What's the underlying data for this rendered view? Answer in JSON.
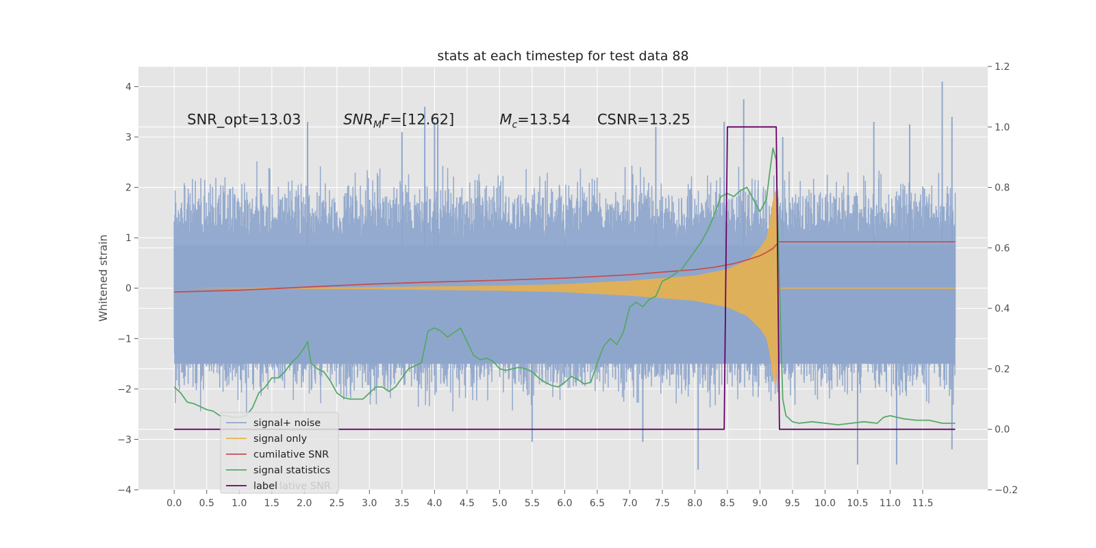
{
  "chart_data": {
    "type": "line",
    "title": "stats at each timestep for test data 88",
    "ylabel": "Whitened strain",
    "ylabel_right": "",
    "xlim": [
      -0.55,
      12.5
    ],
    "ylim": [
      -4,
      4.4
    ],
    "ylim_right": [
      -0.2,
      1.2
    ],
    "xticks": [
      0.0,
      0.5,
      1.0,
      1.5,
      2.0,
      2.5,
      3.0,
      3.5,
      4.0,
      4.5,
      5.0,
      5.5,
      6.0,
      6.5,
      7.0,
      7.5,
      8.0,
      8.5,
      9.0,
      9.5,
      10.0,
      10.5,
      11.0,
      11.5
    ],
    "xtick_labels": [
      "0.0",
      "0.5",
      "1.0",
      "1.5",
      "2.0",
      "2.5",
      "3.0",
      "3.5",
      "4.0",
      "4.5",
      "5.0",
      "5.5",
      "6.0",
      "6.5",
      "7.0",
      "7.5",
      "8.0",
      "8.5",
      "9.0",
      "9.5",
      "10.0",
      "10.5",
      "11.0",
      "11.5"
    ],
    "yticks_left": [
      -4,
      -3,
      -2,
      -1,
      0,
      1,
      2,
      3,
      4
    ],
    "ytick_labels_left": [
      "−4",
      "−3",
      "−2",
      "−1",
      "0",
      "1",
      "2",
      "3",
      "4"
    ],
    "yticks_right": [
      -0.2,
      0.0,
      0.2,
      0.4,
      0.6,
      0.8,
      1.0,
      1.2
    ],
    "ytick_labels_right": [
      "−0.2",
      "0.0",
      "0.2",
      "0.4",
      "0.6",
      "0.8",
      "1.0",
      "1.2"
    ],
    "grid": true,
    "legend_position": "lower-left",
    "annotations": [
      {
        "text": "SNR_opt=13.03",
        "x": 0.2,
        "y": 3.35
      },
      {
        "text_main": "SNR",
        "text_sub": "M",
        "text_rest": "F=[12.62]",
        "x": 2.6,
        "y": 3.35
      },
      {
        "text_main": "M",
        "text_sub": "c",
        "text_rest": "=13.54",
        "x": 5.0,
        "y": 3.35
      },
      {
        "text": "CSNR=13.25",
        "x": 6.5,
        "y": 3.35
      }
    ],
    "series": [
      {
        "name": "signal+ noise",
        "color": "#8fa6cc",
        "axis": "left",
        "style": "noise-band",
        "t_range": [
          0.0,
          12.0
        ],
        "typical_amplitude": 1.6,
        "peaks": [
          {
            "x": 2.05,
            "y": 3.3
          },
          {
            "x": 3.5,
            "y": 3.1
          },
          {
            "x": 3.85,
            "y": 3.6
          },
          {
            "x": 4.0,
            "y": 3.3
          },
          {
            "x": 4.05,
            "y": 3.4
          },
          {
            "x": 7.4,
            "y": 3.2
          },
          {
            "x": 8.45,
            "y": 3.3
          },
          {
            "x": 8.75,
            "y": 3.75
          },
          {
            "x": 11.8,
            "y": 4.1
          },
          {
            "x": 11.3,
            "y": 3.25
          },
          {
            "x": 10.75,
            "y": 3.3
          },
          {
            "x": 11.95,
            "y": 3.4
          },
          {
            "x": 9.35,
            "y": 3.0
          },
          {
            "x": 6.0,
            "y": 0.95
          },
          {
            "x": 5.5,
            "y": -3.05
          },
          {
            "x": 7.2,
            "y": -3.05
          },
          {
            "x": 8.05,
            "y": -3.6
          },
          {
            "x": 10.5,
            "y": -3.5
          },
          {
            "x": 11.1,
            "y": -3.5
          },
          {
            "x": 11.95,
            "y": -3.2
          },
          {
            "x": 6.0,
            "y": -1.1
          }
        ]
      },
      {
        "name": "signal only",
        "color": "#e8b14e",
        "axis": "left",
        "style": "chirp-envelope",
        "envelope": [
          [
            0.0,
            0.0
          ],
          [
            3.0,
            0.02
          ],
          [
            5.0,
            0.05
          ],
          [
            6.0,
            0.08
          ],
          [
            7.0,
            0.15
          ],
          [
            7.5,
            0.2
          ],
          [
            8.0,
            0.25
          ],
          [
            8.5,
            0.38
          ],
          [
            8.8,
            0.55
          ],
          [
            9.0,
            0.8
          ],
          [
            9.1,
            1.0
          ],
          [
            9.15,
            1.3
          ],
          [
            9.2,
            1.75
          ],
          [
            9.25,
            2.0
          ],
          [
            9.28,
            1.3
          ],
          [
            9.3,
            0.0
          ],
          [
            12.0,
            0.0
          ]
        ]
      },
      {
        "name": "cumilative SNR",
        "color": "#c44e52",
        "axis": "right",
        "x": [
          0.0,
          1.0,
          2.0,
          3.0,
          4.0,
          5.0,
          6.0,
          7.0,
          7.5,
          8.0,
          8.3,
          8.6,
          8.8,
          9.0,
          9.1,
          9.2,
          9.25,
          9.3,
          12.0
        ],
        "values": [
          0.454,
          0.46,
          0.47,
          0.48,
          0.487,
          0.493,
          0.5,
          0.511,
          0.52,
          0.528,
          0.536,
          0.548,
          0.56,
          0.574,
          0.585,
          0.598,
          0.61,
          0.62,
          0.62
        ]
      },
      {
        "name": "signal statistics",
        "color": "#55a868",
        "axis": "right",
        "x": [
          0.0,
          0.1,
          0.2,
          0.3,
          0.4,
          0.5,
          0.6,
          0.7,
          0.8,
          0.9,
          1.0,
          1.1,
          1.2,
          1.3,
          1.4,
          1.5,
          1.6,
          1.7,
          1.8,
          1.9,
          2.0,
          2.05,
          2.1,
          2.2,
          2.3,
          2.4,
          2.5,
          2.6,
          2.7,
          2.8,
          2.9,
          3.0,
          3.1,
          3.2,
          3.3,
          3.4,
          3.5,
          3.6,
          3.7,
          3.8,
          3.9,
          4.0,
          4.1,
          4.2,
          4.3,
          4.4,
          4.5,
          4.6,
          4.7,
          4.8,
          4.9,
          5.0,
          5.1,
          5.2,
          5.3,
          5.4,
          5.5,
          5.6,
          5.7,
          5.8,
          5.9,
          6.0,
          6.1,
          6.2,
          6.3,
          6.4,
          6.5,
          6.6,
          6.7,
          6.8,
          6.9,
          7.0,
          7.1,
          7.2,
          7.3,
          7.4,
          7.5,
          7.6,
          7.7,
          7.8,
          7.9,
          8.0,
          8.1,
          8.2,
          8.3,
          8.4,
          8.5,
          8.6,
          8.7,
          8.8,
          8.9,
          9.0,
          9.1,
          9.15,
          9.2,
          9.25,
          9.3,
          9.35,
          9.4,
          9.5,
          9.6,
          9.8,
          10.0,
          10.2,
          10.4,
          10.6,
          10.8,
          10.9,
          11.0,
          11.2,
          11.4,
          11.6,
          11.8,
          12.0
        ],
        "values": [
          0.14,
          0.12,
          0.09,
          0.085,
          0.075,
          0.065,
          0.06,
          0.045,
          0.045,
          0.04,
          0.04,
          0.045,
          0.07,
          0.12,
          0.14,
          0.17,
          0.17,
          0.19,
          0.22,
          0.24,
          0.27,
          0.29,
          0.22,
          0.2,
          0.19,
          0.16,
          0.12,
          0.105,
          0.1,
          0.1,
          0.1,
          0.12,
          0.14,
          0.14,
          0.125,
          0.14,
          0.17,
          0.2,
          0.21,
          0.22,
          0.325,
          0.335,
          0.325,
          0.305,
          0.32,
          0.335,
          0.29,
          0.245,
          0.23,
          0.235,
          0.225,
          0.2,
          0.195,
          0.2,
          0.205,
          0.2,
          0.19,
          0.17,
          0.155,
          0.145,
          0.14,
          0.155,
          0.175,
          0.165,
          0.15,
          0.155,
          0.22,
          0.275,
          0.3,
          0.28,
          0.32,
          0.405,
          0.42,
          0.405,
          0.43,
          0.44,
          0.49,
          0.5,
          0.515,
          0.53,
          0.56,
          0.59,
          0.62,
          0.66,
          0.71,
          0.77,
          0.78,
          0.77,
          0.79,
          0.8,
          0.76,
          0.72,
          0.76,
          0.85,
          0.93,
          0.89,
          0.48,
          0.1,
          0.045,
          0.025,
          0.02,
          0.025,
          0.02,
          0.015,
          0.02,
          0.025,
          0.02,
          0.04,
          0.045,
          0.035,
          0.03,
          0.03,
          0.02,
          0.02
        ]
      },
      {
        "name": "label",
        "color": "#660066",
        "axis": "right",
        "x": [
          0.0,
          8.45,
          8.5,
          9.25,
          9.3,
          12.0
        ],
        "values": [
          0.0,
          0.0,
          1.0,
          1.0,
          0.0,
          0.0
        ]
      }
    ],
    "legend": {
      "entries": [
        "signal+ noise",
        "signal only",
        "cumilative SNR",
        "signal statistics",
        "label"
      ],
      "overlapped_text": "lative SNR"
    },
    "colors": {
      "background": "#e5e5e5",
      "grid": "#ffffff"
    }
  }
}
